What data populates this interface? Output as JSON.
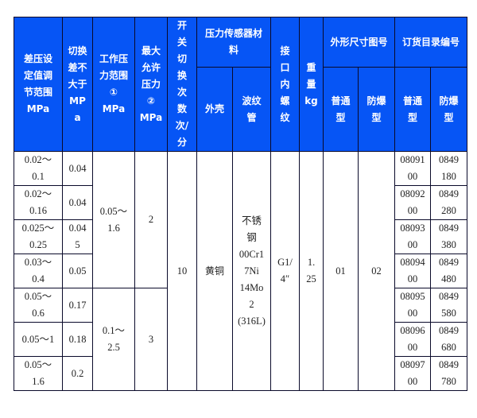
{
  "header": {
    "diff_range": "差压设\n定值调\n节范围\nMPa",
    "switch_diff": "切换\n差不\n大于\nMP\na",
    "work_range": "工作压\n力范围\n①\nMPa",
    "max_pressure": "最大\n允许\n压力\n②\nMPa",
    "switch_count": "开\n关\n切\n换\n次\n数\n次/\n分",
    "sensor_material": "压力传感器材\n料",
    "shell": "外壳",
    "bellows": "波纹\n管",
    "thread": "接\n口\n内\n螺\n纹",
    "weight": "重\n量\nkg",
    "dimension_no": "外形尺寸图号",
    "order_no": "订货目录编号",
    "normal": "普通\n型",
    "explosion_proof": "防爆\n型"
  },
  "rows": [
    {
      "diff_range": "0.02～\n0.1",
      "switch_diff": "0.04",
      "order_normal": "08091\n00",
      "order_ex": "0849\n180"
    },
    {
      "diff_range": "0.02～\n0.16",
      "switch_diff": "0.04",
      "order_normal": "08092\n00",
      "order_ex": "0849\n280"
    },
    {
      "diff_range": "0.025～\n0.25",
      "switch_diff": "0.04\n5",
      "order_normal": "08093\n00",
      "order_ex": "0849\n380"
    },
    {
      "diff_range": "0.03～\n0.4",
      "switch_diff": "0.05",
      "order_normal": "08094\n00",
      "order_ex": "0849\n480"
    },
    {
      "diff_range": "0.05～\n0.6",
      "switch_diff": "0.17",
      "order_normal": "08095\n00",
      "order_ex": "0849\n580"
    },
    {
      "diff_range": "0.05～1",
      "switch_diff": "0.18",
      "order_normal": "08096\n00",
      "order_ex": "0849\n680"
    },
    {
      "diff_range": "0.05～\n1.6",
      "switch_diff": "0.2",
      "order_normal": "08097\n00",
      "order_ex": "0849\n780"
    }
  ],
  "groups": {
    "work_range_a": "0.05～\n1.6",
    "max_pressure_a": "2",
    "work_range_b": "0.1～\n2.5",
    "max_pressure_b": "3"
  },
  "shared": {
    "switch_count": "10",
    "shell": "黄铜",
    "bellows": "不锈\n钢\n00Cr1\n7Ni\n14Mo\n2\n(316L)",
    "thread": "G1/\n4″",
    "weight": "1.\n25",
    "dim_normal": "01",
    "dim_ex": "02"
  },
  "colors": {
    "header_bg": "#0655f5",
    "header_text": "#ffffff",
    "border": "#0a0a2a"
  }
}
